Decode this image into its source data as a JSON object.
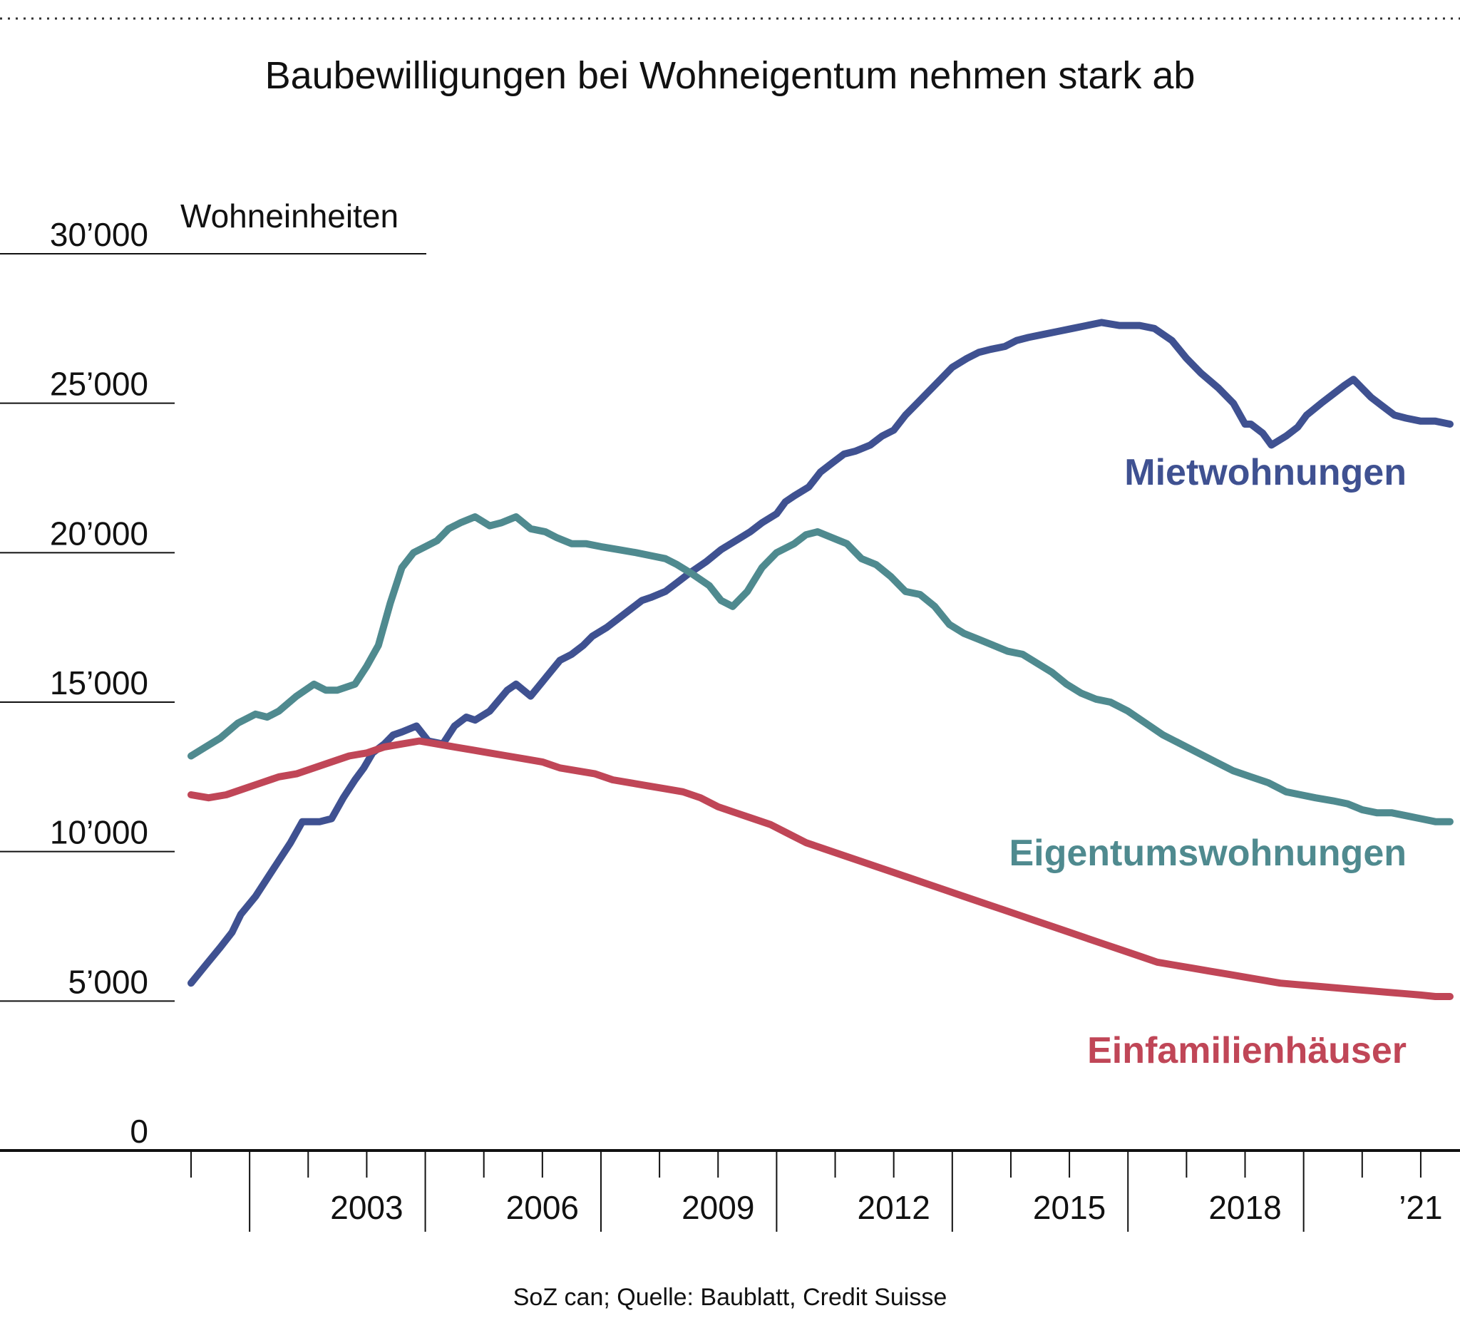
{
  "chart_data": {
    "type": "line",
    "title": "Baubewilligungen bei Wohneigentum nehmen stark ab",
    "ylabel": "Wohneinheiten",
    "xlabel": "",
    "source": "SoZ can; Quelle: Baublatt, Credit Suisse",
    "ylim": [
      0,
      30000
    ],
    "xlim": [
      2000.0,
      2021.5
    ],
    "y_ticks": [
      {
        "value": 0,
        "label": "0"
      },
      {
        "value": 5000,
        "label": "5’000"
      },
      {
        "value": 10000,
        "label": "10’000"
      },
      {
        "value": 15000,
        "label": "15’000"
      },
      {
        "value": 20000,
        "label": "20’000"
      },
      {
        "value": 25000,
        "label": "25’000"
      },
      {
        "value": 30000,
        "label": "30’000"
      }
    ],
    "x_tick_years": [
      2000,
      2001,
      2002,
      2003,
      2004,
      2005,
      2006,
      2007,
      2008,
      2009,
      2010,
      2011,
      2012,
      2013,
      2014,
      2015,
      2016,
      2017,
      2018,
      2019,
      2020,
      2021
    ],
    "x_labels": [
      {
        "value": 2003,
        "label": "2003"
      },
      {
        "value": 2006,
        "label": "2006"
      },
      {
        "value": 2009,
        "label": "2009"
      },
      {
        "value": 2012,
        "label": "2012"
      },
      {
        "value": 2015,
        "label": "2015"
      },
      {
        "value": 2018,
        "label": "2018"
      },
      {
        "value": 2021,
        "label": "’21"
      }
    ],
    "series": [
      {
        "name": "Mietwohnungen",
        "color": "#3f5191",
        "x": [
          2000.0,
          2000.25,
          2000.5,
          2000.7,
          2000.85,
          2001.1,
          2001.3,
          2001.5,
          2001.7,
          2001.9,
          2002.2,
          2002.4,
          2002.6,
          2002.8,
          2002.95,
          2003.1,
          2003.3,
          2003.45,
          2003.6,
          2003.85,
          2004.05,
          2004.3,
          2004.5,
          2004.7,
          2004.85,
          2005.1,
          2005.4,
          2005.55,
          2005.8,
          2006.05,
          2006.3,
          2006.5,
          2006.7,
          2006.85,
          2007.1,
          2007.3,
          2007.5,
          2007.7,
          2007.85,
          2008.1,
          2008.3,
          2008.5,
          2008.8,
          2009.05,
          2009.3,
          2009.55,
          2009.75,
          2010.0,
          2010.15,
          2010.3,
          2010.55,
          2010.75,
          2010.95,
          2011.15,
          2011.35,
          2011.6,
          2011.8,
          2012.0,
          2012.2,
          2012.4,
          2012.6,
          2012.8,
          2013.0,
          2013.25,
          2013.45,
          2013.65,
          2013.9,
          2014.1,
          2014.3,
          2014.55,
          2014.8,
          2015.05,
          2015.3,
          2015.55,
          2015.85,
          2016.2,
          2016.45,
          2016.75,
          2017.0,
          2017.25,
          2017.55,
          2017.8,
          2018.0,
          2018.1,
          2018.3,
          2018.45,
          2018.7,
          2018.9,
          2019.05,
          2019.3,
          2019.5,
          2019.7,
          2019.85,
          2020.0,
          2020.15,
          2020.35,
          2020.55,
          2020.75,
          2021.0,
          2021.25,
          2021.5
        ],
        "y": [
          5600,
          6200,
          6800,
          7300,
          7900,
          8500,
          9100,
          9700,
          10300,
          11000,
          11000,
          11100,
          11800,
          12400,
          12800,
          13300,
          13600,
          13900,
          14000,
          14200,
          13700,
          13600,
          14200,
          14500,
          14400,
          14700,
          15400,
          15600,
          15200,
          15800,
          16400,
          16600,
          16900,
          17200,
          17500,
          17800,
          18100,
          18400,
          18500,
          18700,
          19000,
          19300,
          19700,
          20100,
          20400,
          20700,
          21000,
          21300,
          21700,
          21900,
          22200,
          22700,
          23000,
          23300,
          23400,
          23600,
          23900,
          24100,
          24600,
          25000,
          25400,
          25800,
          26200,
          26500,
          26700,
          26800,
          26900,
          27100,
          27200,
          27300,
          27400,
          27500,
          27600,
          27700,
          27600,
          27600,
          27500,
          27100,
          26500,
          26000,
          25500,
          25000,
          24300,
          24300,
          24000,
          23600,
          23900,
          24200,
          24600,
          25000,
          25300,
          25600,
          25800,
          25500,
          25200,
          24900,
          24600,
          24500,
          24400,
          24400,
          24300
        ],
        "label": "Mietwohnungen"
      },
      {
        "name": "Eigentumswohnungen",
        "color": "#4f8a8f",
        "x": [
          2000.0,
          2000.25,
          2000.5,
          2000.8,
          2001.1,
          2001.3,
          2001.5,
          2001.8,
          2002.1,
          2002.3,
          2002.5,
          2002.8,
          2003.0,
          2003.2,
          2003.4,
          2003.6,
          2003.8,
          2004.0,
          2004.2,
          2004.4,
          2004.6,
          2004.85,
          2005.1,
          2005.3,
          2005.55,
          2005.8,
          2006.05,
          2006.25,
          2006.5,
          2006.75,
          2007.0,
          2007.3,
          2007.6,
          2007.85,
          2008.1,
          2008.3,
          2008.55,
          2008.85,
          2009.05,
          2009.25,
          2009.5,
          2009.75,
          2010.0,
          2010.3,
          2010.5,
          2010.7,
          2010.95,
          2011.2,
          2011.45,
          2011.7,
          2011.95,
          2012.2,
          2012.45,
          2012.7,
          2012.95,
          2013.2,
          2013.45,
          2013.7,
          2013.95,
          2014.2,
          2014.45,
          2014.7,
          2014.95,
          2015.2,
          2015.45,
          2015.7,
          2016.0,
          2016.3,
          2016.6,
          2016.9,
          2017.2,
          2017.5,
          2017.8,
          2018.1,
          2018.4,
          2018.7,
          2018.95,
          2019.2,
          2019.5,
          2019.75,
          2020.0,
          2020.25,
          2020.5,
          2020.75,
          2021.0,
          2021.25,
          2021.5
        ],
        "y": [
          13200,
          13500,
          13800,
          14300,
          14600,
          14500,
          14700,
          15200,
          15600,
          15400,
          15400,
          15600,
          16200,
          16900,
          18300,
          19500,
          20000,
          20200,
          20400,
          20800,
          21000,
          21200,
          20900,
          21000,
          21200,
          20800,
          20700,
          20500,
          20300,
          20300,
          20200,
          20100,
          20000,
          19900,
          19800,
          19600,
          19300,
          18900,
          18400,
          18200,
          18700,
          19500,
          20000,
          20300,
          20600,
          20700,
          20500,
          20300,
          19800,
          19600,
          19200,
          18700,
          18600,
          18200,
          17600,
          17300,
          17100,
          16900,
          16700,
          16600,
          16300,
          16000,
          15600,
          15300,
          15100,
          15000,
          14700,
          14300,
          13900,
          13600,
          13300,
          13000,
          12700,
          12500,
          12300,
          12000,
          11900,
          11800,
          11700,
          11600,
          11400,
          11300,
          11300,
          11200,
          11100,
          11000,
          11000
        ],
        "label": "Eigentumswohnungen"
      },
      {
        "name": "Einfamilienhäuser",
        "color": "#c04657",
        "x": [
          2000.0,
          2000.3,
          2000.6,
          2000.9,
          2001.2,
          2001.5,
          2001.8,
          2002.1,
          2002.4,
          2002.7,
          2003.0,
          2003.3,
          2003.6,
          2003.9,
          2004.2,
          2004.5,
          2004.8,
          2005.1,
          2005.4,
          2005.7,
          2006.0,
          2006.3,
          2006.6,
          2006.9,
          2007.2,
          2007.5,
          2007.8,
          2008.1,
          2008.4,
          2008.7,
          2009.0,
          2009.3,
          2009.6,
          2009.9,
          2010.2,
          2010.5,
          2010.8,
          2011.1,
          2011.4,
          2011.7,
          2012.0,
          2012.3,
          2012.6,
          2012.9,
          2013.2,
          2013.5,
          2013.8,
          2014.1,
          2014.4,
          2014.7,
          2015.0,
          2015.3,
          2015.6,
          2015.9,
          2016.2,
          2016.5,
          2016.8,
          2017.1,
          2017.4,
          2017.7,
          2018.0,
          2018.3,
          2018.6,
          2018.9,
          2019.2,
          2019.5,
          2019.8,
          2020.1,
          2020.4,
          2020.7,
          2021.0,
          2021.25,
          2021.5
        ],
        "y": [
          11900,
          11800,
          11900,
          12100,
          12300,
          12500,
          12600,
          12800,
          13000,
          13200,
          13300,
          13500,
          13600,
          13700,
          13600,
          13500,
          13400,
          13300,
          13200,
          13100,
          13000,
          12800,
          12700,
          12600,
          12400,
          12300,
          12200,
          12100,
          12000,
          11800,
          11500,
          11300,
          11100,
          10900,
          10600,
          10300,
          10100,
          9900,
          9700,
          9500,
          9300,
          9100,
          8900,
          8700,
          8500,
          8300,
          8100,
          7900,
          7700,
          7500,
          7300,
          7100,
          6900,
          6700,
          6500,
          6300,
          6200,
          6100,
          6000,
          5900,
          5800,
          5700,
          5600,
          5550,
          5500,
          5450,
          5400,
          5350,
          5300,
          5250,
          5200,
          5150,
          5150
        ],
        "label": "Einfamilienhäuser"
      }
    ]
  }
}
